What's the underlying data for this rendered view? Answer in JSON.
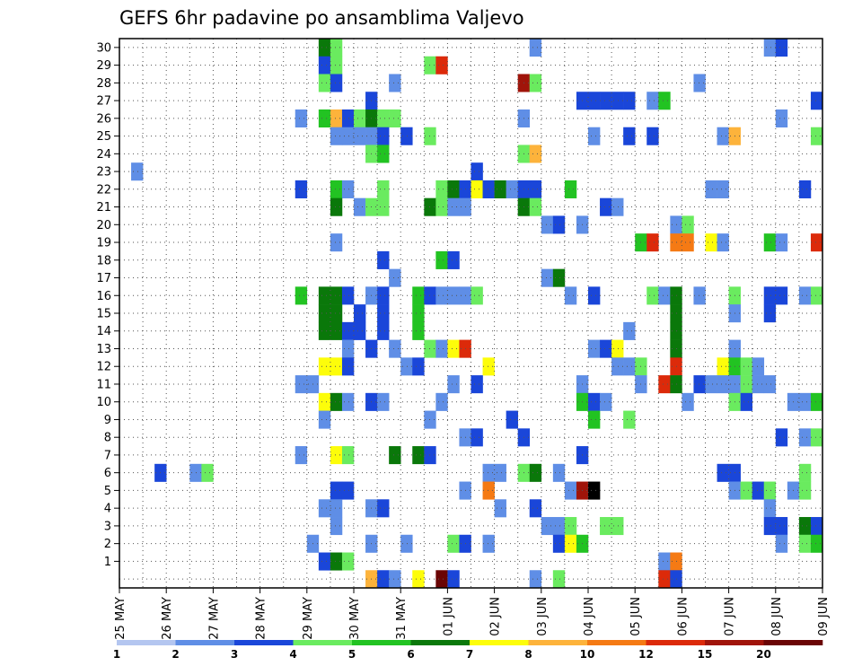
{
  "chart_data": {
    "type": "heatmap",
    "title": "GEFS 6hr padavine po ansamblima Valjevo",
    "xlabel": "",
    "ylabel": "",
    "y_tick_labels": [
      "1",
      "2",
      "3",
      "4",
      "5",
      "6",
      "7",
      "8",
      "9",
      "10",
      "11",
      "12",
      "13",
      "14",
      "15",
      "16",
      "17",
      "18",
      "19",
      "20",
      "21",
      "22",
      "23",
      "24",
      "25",
      "26",
      "27",
      "28",
      "29",
      "30"
    ],
    "y_range": [
      0,
      30
    ],
    "x_tick_labels": [
      "25 MAY",
      "26 MAY",
      "27 MAY",
      "28 MAY",
      "29 MAY",
      "30 MAY",
      "31 MAY",
      "01 JUN",
      "02 JUN",
      "03 JUN",
      "04 JUN",
      "05 JUN",
      "06 JUN",
      "07 JUN",
      "08 JUN",
      "09 JUN"
    ],
    "x_steps_total": 60,
    "steps_per_day": 4,
    "grid": true,
    "legend": {
      "placement": "bottom",
      "thresholds": [
        "1",
        "2",
        "3",
        "4",
        "5",
        "6",
        "7",
        "8",
        "10",
        "12",
        "15",
        "20"
      ],
      "colors": [
        "#b4c6f0",
        "#5f8ee6",
        "#1a46d9",
        "#6aeb5f",
        "#22c322",
        "#0a780a",
        "#fdfd0a",
        "#fdb33b",
        "#f57a14",
        "#dc2a0a",
        "#a0140a",
        "#6a0505"
      ]
    },
    "cells": [
      [
        30,
        17,
        5
      ],
      [
        30,
        18,
        3
      ],
      [
        30,
        35,
        1
      ],
      [
        30,
        55,
        1
      ],
      [
        30,
        56,
        2
      ],
      [
        29,
        17,
        2
      ],
      [
        29,
        18,
        3
      ],
      [
        29,
        26,
        3
      ],
      [
        29,
        27,
        9
      ],
      [
        28,
        17,
        3
      ],
      [
        28,
        18,
        2
      ],
      [
        28,
        23,
        1
      ],
      [
        28,
        34,
        10
      ],
      [
        28,
        35,
        3
      ],
      [
        28,
        49,
        1
      ],
      [
        27,
        21,
        2
      ],
      [
        27,
        39,
        2
      ],
      [
        27,
        40,
        2
      ],
      [
        27,
        41,
        2
      ],
      [
        27,
        42,
        2
      ],
      [
        27,
        43,
        2
      ],
      [
        27,
        45,
        1
      ],
      [
        27,
        46,
        4
      ],
      [
        27,
        59,
        2
      ],
      [
        26,
        15,
        1
      ],
      [
        26,
        17,
        4
      ],
      [
        26,
        18,
        7
      ],
      [
        26,
        19,
        2
      ],
      [
        26,
        20,
        3
      ],
      [
        26,
        21,
        5
      ],
      [
        26,
        22,
        3
      ],
      [
        26,
        23,
        3
      ],
      [
        26,
        34,
        1
      ],
      [
        26,
        56,
        1
      ],
      [
        25,
        18,
        1
      ],
      [
        25,
        19,
        1
      ],
      [
        25,
        20,
        1
      ],
      [
        25,
        21,
        1
      ],
      [
        25,
        22,
        2
      ],
      [
        25,
        24,
        2
      ],
      [
        25,
        26,
        3
      ],
      [
        25,
        40,
        1
      ],
      [
        25,
        43,
        2
      ],
      [
        25,
        45,
        2
      ],
      [
        25,
        51,
        1
      ],
      [
        25,
        52,
        7
      ],
      [
        25,
        59,
        3
      ],
      [
        24,
        21,
        3
      ],
      [
        24,
        22,
        4
      ],
      [
        24,
        34,
        3
      ],
      [
        24,
        35,
        7
      ],
      [
        23,
        1,
        1
      ],
      [
        23,
        30,
        2
      ],
      [
        22,
        15,
        2
      ],
      [
        22,
        18,
        4
      ],
      [
        22,
        19,
        1
      ],
      [
        22,
        22,
        3
      ],
      [
        22,
        27,
        3
      ],
      [
        22,
        28,
        5
      ],
      [
        22,
        29,
        2
      ],
      [
        22,
        30,
        6
      ],
      [
        22,
        31,
        2
      ],
      [
        22,
        32,
        5
      ],
      [
        22,
        33,
        1
      ],
      [
        22,
        34,
        2
      ],
      [
        22,
        35,
        2
      ],
      [
        22,
        38,
        4
      ],
      [
        22,
        50,
        1
      ],
      [
        22,
        51,
        1
      ],
      [
        22,
        58,
        2
      ],
      [
        21,
        18,
        5
      ],
      [
        21,
        20,
        1
      ],
      [
        21,
        21,
        3
      ],
      [
        21,
        22,
        3
      ],
      [
        21,
        26,
        5
      ],
      [
        21,
        27,
        3
      ],
      [
        21,
        28,
        1
      ],
      [
        21,
        29,
        1
      ],
      [
        21,
        34,
        5
      ],
      [
        21,
        35,
        3
      ],
      [
        21,
        41,
        2
      ],
      [
        21,
        42,
        1
      ],
      [
        20,
        36,
        1
      ],
      [
        20,
        37,
        2
      ],
      [
        20,
        39,
        1
      ],
      [
        20,
        47,
        1
      ],
      [
        20,
        48,
        3
      ],
      [
        19,
        18,
        1
      ],
      [
        19,
        44,
        4
      ],
      [
        19,
        45,
        9
      ],
      [
        19,
        47,
        8
      ],
      [
        19,
        48,
        8
      ],
      [
        19,
        50,
        6
      ],
      [
        19,
        51,
        1
      ],
      [
        19,
        55,
        4
      ],
      [
        19,
        56,
        1
      ],
      [
        19,
        59,
        9
      ],
      [
        18,
        22,
        2
      ],
      [
        18,
        27,
        4
      ],
      [
        18,
        28,
        2
      ],
      [
        17,
        23,
        1
      ],
      [
        17,
        36,
        1
      ],
      [
        17,
        37,
        5
      ],
      [
        16,
        15,
        4
      ],
      [
        16,
        17,
        5
      ],
      [
        16,
        18,
        5
      ],
      [
        16,
        19,
        2
      ],
      [
        16,
        21,
        1
      ],
      [
        16,
        22,
        2
      ],
      [
        16,
        25,
        4
      ],
      [
        16,
        26,
        2
      ],
      [
        16,
        27,
        1
      ],
      [
        16,
        28,
        1
      ],
      [
        16,
        29,
        1
      ],
      [
        16,
        30,
        3
      ],
      [
        16,
        38,
        1
      ],
      [
        16,
        40,
        2
      ],
      [
        16,
        45,
        3
      ],
      [
        16,
        46,
        1
      ],
      [
        16,
        47,
        5
      ],
      [
        16,
        49,
        1
      ],
      [
        16,
        52,
        3
      ],
      [
        16,
        55,
        2
      ],
      [
        16,
        56,
        2
      ],
      [
        16,
        58,
        1
      ],
      [
        16,
        59,
        3
      ],
      [
        15,
        17,
        5
      ],
      [
        15,
        18,
        5
      ],
      [
        15,
        20,
        2
      ],
      [
        15,
        22,
        2
      ],
      [
        15,
        25,
        4
      ],
      [
        15,
        47,
        5
      ],
      [
        15,
        52,
        1
      ],
      [
        15,
        55,
        2
      ],
      [
        14,
        17,
        5
      ],
      [
        14,
        18,
        5
      ],
      [
        14,
        19,
        2
      ],
      [
        14,
        20,
        2
      ],
      [
        14,
        22,
        2
      ],
      [
        14,
        25,
        4
      ],
      [
        14,
        43,
        1
      ],
      [
        14,
        47,
        5
      ],
      [
        13,
        19,
        1
      ],
      [
        13,
        21,
        2
      ],
      [
        13,
        23,
        1
      ],
      [
        13,
        26,
        3
      ],
      [
        13,
        27,
        1
      ],
      [
        13,
        28,
        6
      ],
      [
        13,
        29,
        9
      ],
      [
        13,
        40,
        1
      ],
      [
        13,
        41,
        2
      ],
      [
        13,
        42,
        6
      ],
      [
        13,
        47,
        5
      ],
      [
        13,
        52,
        1
      ],
      [
        12,
        17,
        6
      ],
      [
        12,
        18,
        6
      ],
      [
        12,
        19,
        2
      ],
      [
        12,
        24,
        1
      ],
      [
        12,
        25,
        2
      ],
      [
        12,
        31,
        6
      ],
      [
        12,
        42,
        1
      ],
      [
        12,
        43,
        1
      ],
      [
        12,
        44,
        3
      ],
      [
        12,
        47,
        9
      ],
      [
        12,
        51,
        6
      ],
      [
        12,
        52,
        4
      ],
      [
        12,
        53,
        3
      ],
      [
        12,
        54,
        1
      ],
      [
        11,
        15,
        1
      ],
      [
        11,
        16,
        1
      ],
      [
        11,
        28,
        1
      ],
      [
        11,
        30,
        2
      ],
      [
        11,
        39,
        1
      ],
      [
        11,
        44,
        1
      ],
      [
        11,
        46,
        9
      ],
      [
        11,
        47,
        5
      ],
      [
        11,
        49,
        2
      ],
      [
        11,
        50,
        1
      ],
      [
        11,
        51,
        1
      ],
      [
        11,
        52,
        1
      ],
      [
        11,
        53,
        3
      ],
      [
        11,
        54,
        1
      ],
      [
        11,
        55,
        1
      ],
      [
        10,
        17,
        6
      ],
      [
        10,
        18,
        5
      ],
      [
        10,
        19,
        1
      ],
      [
        10,
        21,
        2
      ],
      [
        10,
        22,
        1
      ],
      [
        10,
        27,
        1
      ],
      [
        10,
        39,
        4
      ],
      [
        10,
        40,
        2
      ],
      [
        10,
        41,
        1
      ],
      [
        10,
        48,
        1
      ],
      [
        10,
        52,
        3
      ],
      [
        10,
        53,
        2
      ],
      [
        10,
        57,
        1
      ],
      [
        10,
        58,
        1
      ],
      [
        10,
        59,
        4
      ],
      [
        9,
        17,
        1
      ],
      [
        9,
        26,
        1
      ],
      [
        9,
        33,
        2
      ],
      [
        9,
        40,
        4
      ],
      [
        9,
        43,
        3
      ],
      [
        8,
        29,
        1
      ],
      [
        8,
        30,
        2
      ],
      [
        8,
        34,
        2
      ],
      [
        8,
        56,
        2
      ],
      [
        8,
        58,
        1
      ],
      [
        8,
        59,
        3
      ],
      [
        7,
        15,
        1
      ],
      [
        7,
        18,
        6
      ],
      [
        7,
        19,
        3
      ],
      [
        7,
        23,
        5
      ],
      [
        7,
        25,
        5
      ],
      [
        7,
        26,
        2
      ],
      [
        7,
        39,
        2
      ],
      [
        6,
        3,
        2
      ],
      [
        6,
        6,
        1
      ],
      [
        6,
        7,
        3
      ],
      [
        6,
        31,
        1
      ],
      [
        6,
        32,
        1
      ],
      [
        6,
        34,
        3
      ],
      [
        6,
        35,
        5
      ],
      [
        6,
        37,
        1
      ],
      [
        6,
        51,
        2
      ],
      [
        6,
        52,
        2
      ],
      [
        6,
        58,
        3
      ],
      [
        5,
        18,
        2
      ],
      [
        5,
        19,
        2
      ],
      [
        5,
        29,
        1
      ],
      [
        5,
        31,
        8
      ],
      [
        5,
        38,
        1
      ],
      [
        5,
        39,
        10
      ],
      [
        5,
        40,
        12
      ],
      [
        5,
        52,
        1
      ],
      [
        5,
        53,
        3
      ],
      [
        5,
        54,
        2
      ],
      [
        5,
        55,
        3
      ],
      [
        5,
        57,
        1
      ],
      [
        5,
        58,
        3
      ],
      [
        4,
        17,
        1
      ],
      [
        4,
        18,
        1
      ],
      [
        4,
        21,
        1
      ],
      [
        4,
        22,
        2
      ],
      [
        4,
        32,
        1
      ],
      [
        4,
        35,
        2
      ],
      [
        4,
        55,
        1
      ],
      [
        3,
        18,
        1
      ],
      [
        3,
        36,
        1
      ],
      [
        3,
        37,
        1
      ],
      [
        3,
        38,
        3
      ],
      [
        3,
        41,
        3
      ],
      [
        3,
        42,
        3
      ],
      [
        3,
        55,
        2
      ],
      [
        3,
        56,
        2
      ],
      [
        3,
        58,
        5
      ],
      [
        3,
        59,
        2
      ],
      [
        2,
        16,
        1
      ],
      [
        2,
        21,
        1
      ],
      [
        2,
        24,
        1
      ],
      [
        2,
        28,
        3
      ],
      [
        2,
        29,
        2
      ],
      [
        2,
        31,
        1
      ],
      [
        2,
        37,
        2
      ],
      [
        2,
        38,
        6
      ],
      [
        2,
        39,
        4
      ],
      [
        2,
        56,
        1
      ],
      [
        2,
        58,
        3
      ],
      [
        2,
        59,
        4
      ],
      [
        1,
        17,
        2
      ],
      [
        1,
        18,
        5
      ],
      [
        1,
        19,
        3
      ],
      [
        1,
        46,
        1
      ],
      [
        1,
        47,
        8
      ],
      [
        0,
        21,
        7
      ],
      [
        0,
        22,
        2
      ],
      [
        0,
        23,
        1
      ],
      [
        0,
        25,
        6
      ],
      [
        0,
        27,
        11
      ],
      [
        0,
        28,
        2
      ],
      [
        0,
        35,
        1
      ],
      [
        0,
        37,
        3
      ],
      [
        0,
        46,
        9
      ],
      [
        0,
        47,
        2
      ]
    ]
  }
}
